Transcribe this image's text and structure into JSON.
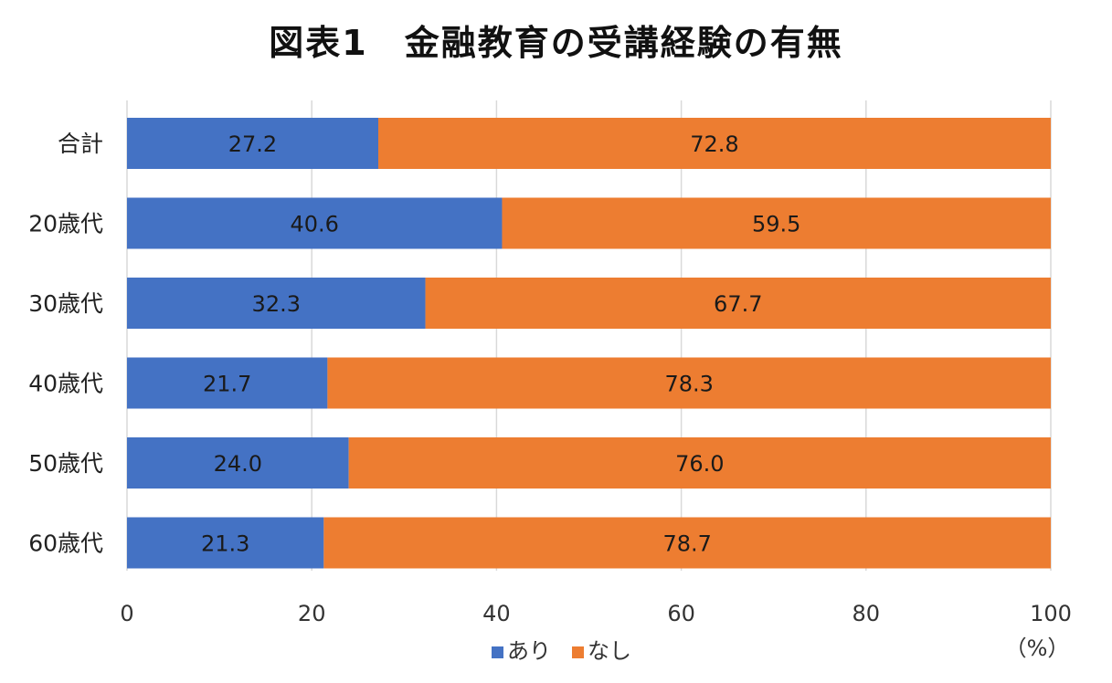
{
  "chart_data": {
    "type": "bar",
    "orientation": "horizontal",
    "stacked": true,
    "title": "図表1　金融教育の受講経験の有無",
    "categories": [
      "合計",
      "20歳代",
      "30歳代",
      "40歳代",
      "50歳代",
      "60歳代"
    ],
    "series": [
      {
        "name": "あり",
        "color": "#4472c4",
        "values": [
          27.2,
          40.6,
          32.3,
          21.7,
          24.0,
          21.3
        ],
        "labels": [
          "27.2",
          "40.6",
          "32.3",
          "21.7",
          "24.0",
          "21.3"
        ]
      },
      {
        "name": "なし",
        "color": "#ed7d31",
        "values": [
          72.8,
          59.5,
          67.7,
          78.3,
          76.0,
          78.7
        ],
        "labels": [
          "72.8",
          "59.5",
          "67.7",
          "78.3",
          "76.0",
          "78.7"
        ]
      }
    ],
    "xlim": [
      0,
      100
    ],
    "xticks": [
      "0",
      "20",
      "40",
      "60",
      "80",
      "100"
    ],
    "xunit": "（%）",
    "grid": true,
    "legend": "bottom"
  }
}
